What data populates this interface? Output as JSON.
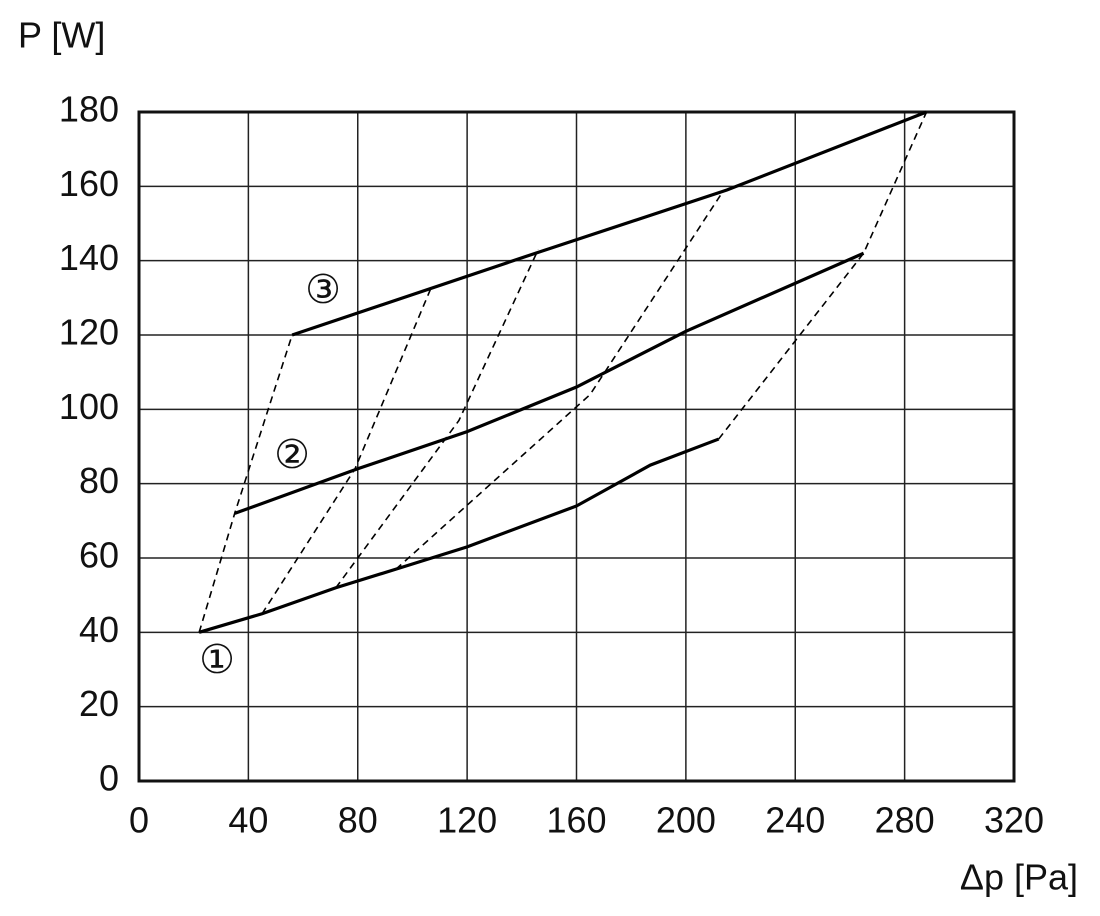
{
  "chart_data": {
    "type": "line",
    "y_label": "P [W]",
    "x_label": "Δp [Pa]",
    "xlim": [
      0,
      320
    ],
    "xticks": [
      0,
      40,
      80,
      120,
      160,
      200,
      240,
      280,
      320
    ],
    "ylim": [
      0,
      180
    ],
    "yticks": [
      0,
      20,
      40,
      60,
      80,
      100,
      120,
      140,
      160,
      180
    ],
    "grid": true,
    "series": [
      {
        "color": "#000000",
        "dashed": false,
        "x": [
          22,
          45,
          72,
          94,
          120,
          160,
          187,
          212
        ],
        "values": [
          40,
          45,
          52,
          57,
          63,
          74,
          85,
          92
        ]
      },
      {
        "color": "#000000",
        "dashed": false,
        "x": [
          35,
          80,
          120,
          160,
          200,
          265
        ],
        "values": [
          72,
          84,
          94,
          106,
          121,
          142
        ]
      },
      {
        "color": "#000000",
        "dashed": false,
        "x": [
          56,
          145,
          215,
          288
        ],
        "values": [
          120,
          142,
          159,
          180
        ]
      },
      {
        "color": "#000000",
        "dashed": true,
        "x": [
          22,
          35,
          56
        ],
        "values": [
          40,
          72,
          120
        ]
      },
      {
        "color": "#000000",
        "dashed": true,
        "x": [
          45,
          79,
          107
        ],
        "values": [
          45,
          84,
          133
        ]
      },
      {
        "color": "#000000",
        "dashed": true,
        "x": [
          72,
          117,
          146
        ],
        "values": [
          52,
          97,
          143
        ]
      },
      {
        "color": "#000000",
        "dashed": true,
        "x": [
          94,
          165,
          213
        ],
        "values": [
          57,
          104,
          158
        ]
      },
      {
        "color": "#000000",
        "dashed": true,
        "x": [
          212,
          265,
          288
        ],
        "values": [
          92,
          142,
          180
        ]
      }
    ],
    "annotations": [
      "①",
      "②",
      "③"
    ]
  }
}
